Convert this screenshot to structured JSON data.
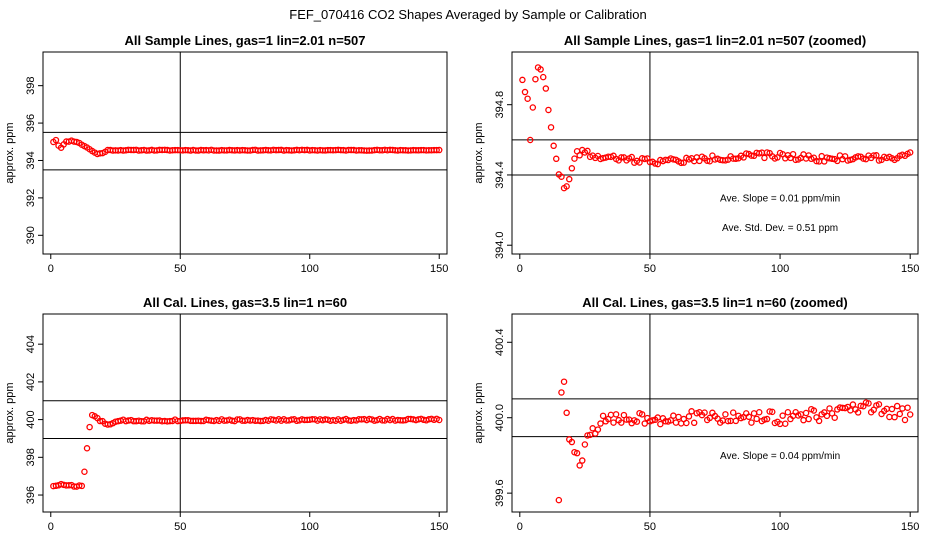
{
  "figure": {
    "title": "FEF_070416  CO2 Shapes Averaged by Sample or Calibration"
  },
  "chart_data": [
    {
      "type": "scatter",
      "title": "All Sample Lines, gas=1 lin=2.01 n=507",
      "xlabel": "",
      "ylabel": "approx. ppm",
      "xlim": [
        -3,
        153
      ],
      "ylim": [
        389,
        399.8
      ],
      "xticks": [
        0,
        50,
        100,
        150
      ],
      "xtick_labels": [
        "0",
        "50",
        "100",
        "150"
      ],
      "yticks": [
        390,
        392,
        394,
        396,
        398
      ],
      "ytick_labels": [
        "390",
        "392",
        "394",
        "396",
        "398"
      ],
      "hlines": [
        393.5,
        395.5
      ],
      "vline": 50,
      "marker_color": "#ff0000",
      "annotations": [],
      "profile": [
        [
          1,
          395.0
        ],
        [
          2,
          395.1
        ],
        [
          3,
          394.8
        ],
        [
          4,
          394.7
        ],
        [
          5,
          394.85
        ],
        [
          6,
          395.0
        ],
        [
          8,
          395.05
        ],
        [
          10,
          395.0
        ],
        [
          12,
          394.85
        ],
        [
          14,
          394.7
        ],
        [
          16,
          394.5
        ],
        [
          18,
          394.35
        ],
        [
          20,
          394.4
        ],
        [
          22,
          394.55
        ],
        [
          150,
          394.55
        ]
      ],
      "noise": 0.02,
      "seed": 11,
      "x": [],
      "y": []
    },
    {
      "type": "scatter",
      "title": "All Sample Lines, gas=1 lin=2.01 n=507 (zoomed)",
      "xlabel": "",
      "ylabel": "approx. ppm",
      "xlim": [
        -3,
        153
      ],
      "ylim": [
        393.95,
        395.1
      ],
      "xticks": [
        0,
        50,
        100,
        150
      ],
      "xtick_labels": [
        "0",
        "50",
        "100",
        "150"
      ],
      "yticks": [
        394.0,
        394.4,
        394.8
      ],
      "ytick_labels": [
        "394.0",
        "394.4",
        "394.8"
      ],
      "hlines": [
        394.4,
        394.6
      ],
      "vline": 50,
      "marker_color": "#ff0000",
      "annotations": [
        {
          "text": "Ave. Slope =  0.01  ppm/min",
          "x": 100,
          "y": 394.25
        },
        {
          "text": "Ave. Std. Dev. =  0.51  ppm",
          "x": 100,
          "y": 394.08
        }
      ],
      "profile": [
        [
          1,
          394.95
        ],
        [
          2,
          394.88
        ],
        [
          3,
          394.82
        ],
        [
          4,
          394.6
        ],
        [
          5,
          394.8
        ],
        [
          6,
          394.96
        ],
        [
          7,
          395.0
        ],
        [
          8,
          394.99
        ],
        [
          9,
          394.95
        ],
        [
          10,
          394.88
        ],
        [
          11,
          394.76
        ],
        [
          12,
          394.66
        ],
        [
          13,
          394.58
        ],
        [
          14,
          394.48
        ],
        [
          15,
          394.42
        ],
        [
          16,
          394.38
        ],
        [
          17,
          394.34
        ],
        [
          18,
          394.33
        ],
        [
          19,
          394.36
        ],
        [
          20,
          394.45
        ],
        [
          22,
          394.52
        ],
        [
          24,
          394.53
        ],
        [
          30,
          394.5
        ],
        [
          40,
          394.49
        ],
        [
          50,
          394.48
        ],
        [
          60,
          394.48
        ],
        [
          70,
          394.49
        ],
        [
          80,
          394.5
        ],
        [
          90,
          394.51
        ],
        [
          100,
          394.51
        ],
        [
          110,
          394.5
        ],
        [
          120,
          394.49
        ],
        [
          130,
          394.5
        ],
        [
          140,
          394.5
        ],
        [
          150,
          394.51
        ]
      ],
      "noise": 0.018,
      "seed": 22,
      "x": [],
      "y": []
    },
    {
      "type": "scatter",
      "title": "All Cal. Lines, gas=3.5 lin=1 n=60",
      "xlabel": "",
      "ylabel": "approx. ppm",
      "xlim": [
        -3,
        153
      ],
      "ylim": [
        395.1,
        405.6
      ],
      "xticks": [
        0,
        50,
        100,
        150
      ],
      "xtick_labels": [
        "0",
        "50",
        "100",
        "150"
      ],
      "yticks": [
        396,
        398,
        400,
        402,
        404
      ],
      "ytick_labels": [
        "396",
        "398",
        "400",
        "402",
        "404"
      ],
      "hlines": [
        399.0,
        401.0
      ],
      "vline": 50,
      "marker_color": "#ff0000",
      "annotations": [],
      "profile": [
        [
          1,
          396.5
        ],
        [
          5,
          396.55
        ],
        [
          10,
          396.45
        ],
        [
          12,
          396.5
        ],
        [
          13,
          397.2
        ],
        [
          14,
          398.5
        ],
        [
          15,
          399.6
        ],
        [
          16,
          400.2
        ],
        [
          17,
          400.15
        ],
        [
          19,
          399.95
        ],
        [
          21,
          399.8
        ],
        [
          23,
          399.75
        ],
        [
          25,
          399.85
        ],
        [
          28,
          399.95
        ],
        [
          150,
          400.0
        ]
      ],
      "noise": 0.05,
      "seed": 33,
      "x": [],
      "y": []
    },
    {
      "type": "scatter",
      "title": "All Cal. Lines, gas=3.5 lin=1 n=60 (zoomed)",
      "xlabel": "",
      "ylabel": "approx. ppm",
      "xlim": [
        -3,
        153
      ],
      "ylim": [
        399.5,
        400.55
      ],
      "xticks": [
        0,
        50,
        100,
        150
      ],
      "xtick_labels": [
        "0",
        "50",
        "100",
        "150"
      ],
      "yticks": [
        399.6,
        400.0,
        400.4
      ],
      "ytick_labels": [
        "399.6",
        "400.0",
        "400.4"
      ],
      "hlines": [
        399.9,
        400.1
      ],
      "vline": 50,
      "marker_color": "#ff0000",
      "annotations": [
        {
          "text": "Ave. Slope =  0.04  ppm/min",
          "x": 100,
          "y": 399.78
        }
      ],
      "profile": [
        [
          15,
          399.58
        ],
        [
          16,
          400.15
        ],
        [
          17,
          400.16
        ],
        [
          18,
          400.04
        ],
        [
          19,
          399.87
        ],
        [
          20,
          399.87
        ],
        [
          21,
          399.83
        ],
        [
          22,
          399.78
        ],
        [
          23,
          399.72
        ],
        [
          24,
          399.8
        ],
        [
          26,
          399.88
        ],
        [
          30,
          399.97
        ],
        [
          40,
          400.0
        ],
        [
          60,
          400.0
        ],
        [
          80,
          400.0
        ],
        [
          100,
          400.0
        ],
        [
          120,
          400.02
        ],
        [
          130,
          400.05
        ],
        [
          150,
          400.02
        ]
      ],
      "noise": 0.035,
      "seed": 44,
      "x": [],
      "y": []
    }
  ]
}
